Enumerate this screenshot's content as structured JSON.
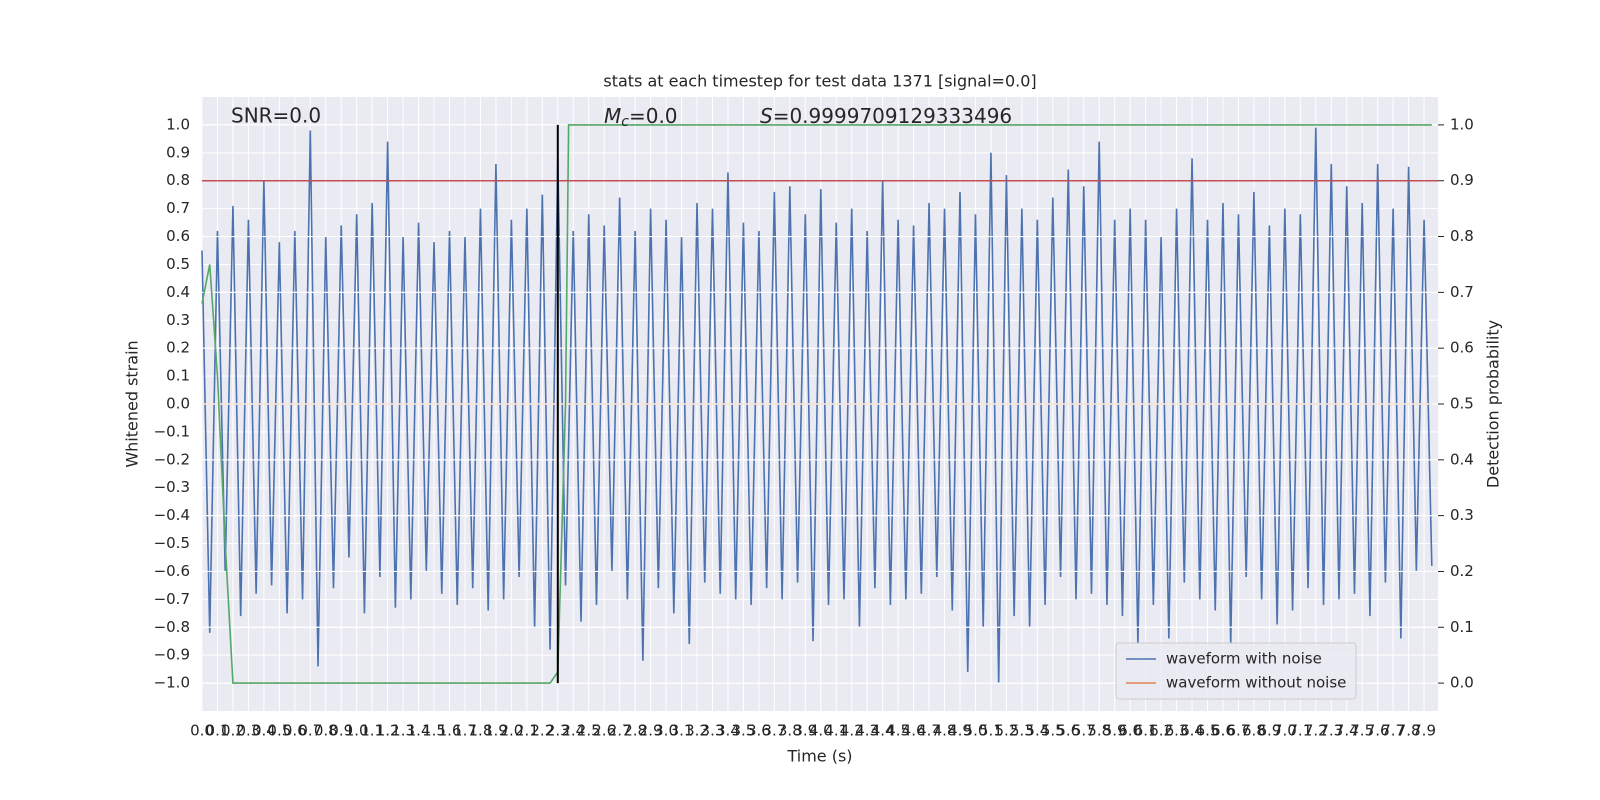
{
  "chart_data": {
    "type": "line",
    "title": "stats at each timestep for test data 1371 [signal=0.0]",
    "xlabel": "Time (s)",
    "ylabel": "Whitened strain",
    "y2label": "Detection probability",
    "xlim": [
      0,
      7.99
    ],
    "ylim": [
      -1.1,
      1.1
    ],
    "y2lim": [
      -0.05,
      1.05
    ],
    "xticks": [
      {
        "value": 0,
        "label": "0.0"
      },
      0.1,
      0.2,
      0.3,
      0.4,
      0.5,
      0.6,
      0.7,
      0.8,
      0.9,
      {
        "value": 1,
        "label": "1.0"
      },
      1.1,
      1.2,
      1.3,
      1.4,
      1.5,
      1.6,
      1.7,
      1.8,
      1.9,
      {
        "value": 2,
        "label": "2.0"
      },
      2.1,
      2.2,
      2.3,
      2.4,
      2.5,
      2.6,
      2.7,
      2.8,
      2.9,
      {
        "value": 3,
        "label": "3.0"
      },
      3.1,
      3.2,
      3.3,
      3.4,
      3.5,
      3.6,
      3.7,
      3.8,
      3.9,
      {
        "value": 4,
        "label": "4.0"
      },
      4.1,
      4.2,
      4.3,
      4.4,
      4.5,
      4.6,
      4.7,
      4.8,
      4.9,
      {
        "value": 5,
        "label": "5.0"
      },
      5.1,
      5.2,
      5.3,
      5.4,
      5.5,
      5.6,
      5.7,
      5.8,
      5.9,
      {
        "value": 6,
        "label": "6.0"
      },
      6.1,
      6.2,
      6.3,
      6.4,
      6.5,
      6.6,
      6.7,
      6.8,
      6.9,
      {
        "value": 7,
        "label": "7.0"
      },
      7.1,
      7.2,
      7.3,
      7.4,
      7.5,
      7.6,
      7.7,
      7.8,
      7.9
    ],
    "yticks": [
      {
        "value": -1,
        "label": "−1.0"
      },
      {
        "value": -0.9,
        "label": "−0.9"
      },
      {
        "value": -0.8,
        "label": "−0.8"
      },
      {
        "value": -0.7,
        "label": "−0.7"
      },
      {
        "value": -0.6,
        "label": "−0.6"
      },
      {
        "value": -0.5,
        "label": "−0.5"
      },
      {
        "value": -0.4,
        "label": "−0.4"
      },
      {
        "value": -0.3,
        "label": "−0.3"
      },
      {
        "value": -0.2,
        "label": "−0.2"
      },
      {
        "value": -0.1,
        "label": "−0.1"
      },
      {
        "value": 0,
        "label": "0.0"
      },
      0.1,
      0.2,
      0.3,
      0.4,
      0.5,
      0.6,
      0.7,
      0.8,
      0.9,
      {
        "value": 1,
        "label": "1.0"
      }
    ],
    "y2ticks": [
      {
        "value": 0,
        "label": "0.0"
      },
      0.1,
      0.2,
      0.3,
      0.4,
      0.5,
      0.6,
      0.7,
      0.8,
      0.9,
      {
        "value": 1,
        "label": "1.0"
      }
    ],
    "grid": true,
    "legend": "lower right",
    "series": [
      {
        "name": "waveform with noise",
        "color": "#4c72b0",
        "x": [
          0,
          0.05,
          0.1,
          0.15,
          0.2,
          0.25,
          0.3,
          0.35,
          0.4,
          0.45,
          0.5,
          0.55,
          0.6,
          0.65,
          0.7,
          0.75,
          0.8,
          0.85,
          0.9,
          0.95,
          1,
          1.05,
          1.1,
          1.15,
          1.2,
          1.25,
          1.3,
          1.35,
          1.4,
          1.45,
          1.5,
          1.55,
          1.6,
          1.65,
          1.7,
          1.75,
          1.8,
          1.85,
          1.9,
          1.95,
          2,
          2.05,
          2.1,
          2.15,
          2.2,
          2.25,
          2.3,
          2.35,
          2.4,
          2.45,
          2.5,
          2.55,
          2.6,
          2.65,
          2.7,
          2.75,
          2.8,
          2.85,
          2.9,
          2.95,
          3,
          3.05,
          3.1,
          3.15,
          3.2,
          3.25,
          3.3,
          3.35,
          3.4,
          3.45,
          3.5,
          3.55,
          3.6,
          3.65,
          3.7,
          3.75,
          3.8,
          3.85,
          3.9,
          3.95,
          4,
          4.05,
          4.1,
          4.15,
          4.2,
          4.25,
          4.3,
          4.35,
          4.4,
          4.45,
          4.5,
          4.55,
          4.6,
          4.65,
          4.7,
          4.75,
          4.8,
          4.85,
          4.9,
          4.95,
          5,
          5.05,
          5.1,
          5.15,
          5.2,
          5.25,
          5.3,
          5.35,
          5.4,
          5.45,
          5.5,
          5.55,
          5.6,
          5.65,
          5.7,
          5.75,
          5.8,
          5.85,
          5.9,
          5.95,
          6,
          6.05,
          6.1,
          6.15,
          6.2,
          6.25,
          6.3,
          6.35,
          6.4,
          6.45,
          6.5,
          6.55,
          6.6,
          6.65,
          6.7,
          6.75,
          6.8,
          6.85,
          6.9,
          6.95,
          7,
          7.05,
          7.1,
          7.15,
          7.2,
          7.25,
          7.3,
          7.35,
          7.4,
          7.45,
          7.5,
          7.55,
          7.6,
          7.65,
          7.7,
          7.75,
          7.8,
          7.85,
          7.9,
          7.95
        ],
        "values": [
          0.55,
          -0.82,
          0.62,
          -0.6,
          0.71,
          -0.76,
          0.66,
          -0.68,
          0.8,
          -0.65,
          0.58,
          -0.75,
          0.62,
          -0.7,
          0.98,
          -0.94,
          0.6,
          -0.66,
          0.64,
          -0.55,
          0.68,
          -0.75,
          0.72,
          -0.62,
          0.94,
          -0.73,
          0.6,
          -0.7,
          0.65,
          -0.6,
          0.58,
          -0.68,
          0.62,
          -0.72,
          0.6,
          -0.66,
          0.7,
          -0.74,
          0.86,
          -0.7,
          0.66,
          -0.62,
          0.7,
          -0.8,
          0.75,
          -0.88,
          0.88,
          -0.65,
          0.62,
          -0.78,
          0.68,
          -0.72,
          0.64,
          -0.6,
          0.74,
          -0.7,
          0.62,
          -0.92,
          0.7,
          -0.66,
          0.66,
          -0.75,
          0.6,
          -0.86,
          0.72,
          -0.64,
          0.7,
          -0.68,
          0.83,
          -0.7,
          0.65,
          -0.72,
          0.62,
          -0.66,
          0.76,
          -0.7,
          0.78,
          -0.64,
          0.68,
          -0.85,
          0.77,
          -0.72,
          0.65,
          -0.7,
          0.7,
          -0.8,
          0.62,
          -0.66,
          0.8,
          -0.72,
          0.66,
          -0.7,
          0.64,
          -0.68,
          0.72,
          -0.62,
          0.7,
          -0.74,
          0.76,
          -0.96,
          0.68,
          -0.8,
          0.9,
          -1.0,
          0.82,
          -0.76,
          0.7,
          -0.8,
          0.66,
          -0.72,
          0.74,
          -0.62,
          0.84,
          -0.7,
          0.78,
          -0.68,
          0.94,
          -0.72,
          0.66,
          -0.76,
          0.7,
          -0.86,
          0.66,
          -0.72,
          0.6,
          -0.84,
          0.7,
          -0.64,
          0.88,
          -0.7,
          0.66,
          -0.74,
          0.72,
          -0.86,
          0.68,
          -0.62,
          0.76,
          -0.7,
          0.64,
          -0.79,
          0.7,
          -0.74,
          0.68,
          -0.66,
          0.99,
          -0.72,
          0.86,
          -0.7,
          0.78,
          -0.68,
          0.72,
          -0.76,
          0.86,
          -0.64,
          0.7,
          -0.84,
          0.85,
          -0.6,
          0.66,
          -0.58
        ]
      },
      {
        "name": "waveform without noise",
        "color": "#dd8452",
        "x": [
          0,
          7.95
        ],
        "values": [
          0,
          0
        ]
      }
    ],
    "probability": {
      "axis": "y2",
      "color": "#55a868",
      "x": [
        0,
        0.05,
        0.1,
        0.15,
        0.2,
        0.25,
        2.25,
        2.3,
        2.35,
        2.37,
        7.95
      ],
      "values": [
        0.68,
        0.75,
        0.55,
        0.25,
        0.0,
        0.0,
        0.0,
        0.02,
        0.5,
        1.0,
        1.0
      ]
    },
    "hlines": [
      {
        "y": 0.8,
        "color": "#c44e52"
      }
    ],
    "vlines": [
      {
        "x": 2.3,
        "ymin": -1,
        "ymax": 1,
        "color": "#000000"
      }
    ],
    "annotations": [
      {
        "text": "SNR=0.0"
      },
      {
        "symbol": "M",
        "subscript": "c",
        "text": "=0.0"
      },
      {
        "symbol": "S",
        "text": "=0.9999709129333496"
      }
    ]
  }
}
